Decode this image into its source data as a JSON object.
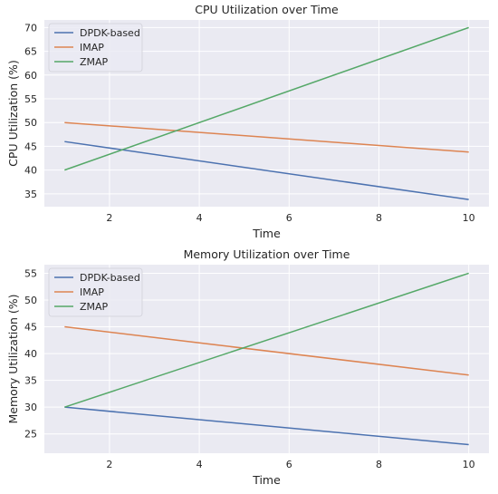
{
  "chart_data": [
    {
      "type": "line",
      "title": "CPU Utilization over Time",
      "xlabel": "Time",
      "ylabel": "CPU Utilization (%)",
      "x": [
        1,
        10
      ],
      "xlim": [
        0.55,
        10.45
      ],
      "ylim": [
        32.3,
        71.6
      ],
      "xticks": [
        2,
        4,
        6,
        8,
        10
      ],
      "yticks": [
        35,
        40,
        45,
        50,
        55,
        60,
        65,
        70
      ],
      "grid": true,
      "legend": "top-left",
      "series": [
        {
          "name": "DPDK-based",
          "color": "#4c72b0",
          "values": [
            46,
            33.8
          ]
        },
        {
          "name": "IMAP",
          "color": "#dd8452",
          "values": [
            50,
            43.8
          ]
        },
        {
          "name": "ZMAP",
          "color": "#55a868",
          "values": [
            40,
            70
          ]
        }
      ]
    },
    {
      "type": "line",
      "title": "Memory Utilization over Time",
      "xlabel": "Time",
      "ylabel": "Memory Utilization (%)",
      "x": [
        1,
        10
      ],
      "xlim": [
        0.55,
        10.45
      ],
      "ylim": [
        21.4,
        56.6
      ],
      "xticks": [
        2,
        4,
        6,
        8,
        10
      ],
      "yticks": [
        25,
        30,
        35,
        40,
        45,
        50,
        55
      ],
      "grid": true,
      "legend": "top-left",
      "series": [
        {
          "name": "DPDK-based",
          "color": "#4c72b0",
          "values": [
            30,
            23
          ]
        },
        {
          "name": "IMAP",
          "color": "#dd8452",
          "values": [
            45,
            36
          ]
        },
        {
          "name": "ZMAP",
          "color": "#55a868",
          "values": [
            30,
            55
          ]
        }
      ]
    }
  ]
}
